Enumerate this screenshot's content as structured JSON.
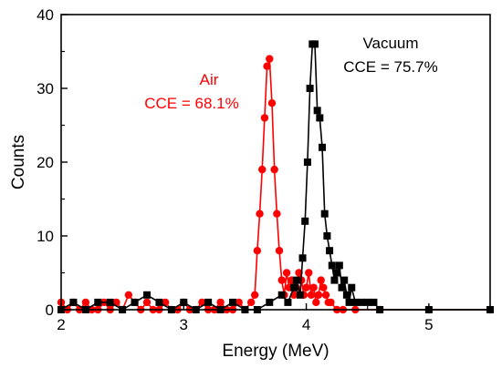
{
  "chart_data": {
    "type": "scatter",
    "title": "",
    "xlabel": "Energy (MeV)",
    "ylabel": "Counts",
    "xlim": [
      2,
      5.5
    ],
    "ylim": [
      0,
      40
    ],
    "xticks": [
      2,
      3,
      4,
      5
    ],
    "yticks": [
      0,
      10,
      20,
      30,
      40
    ],
    "grid": false,
    "colors": {
      "air": "#ff0000",
      "vacuum": "#000000"
    },
    "annotations": {
      "air": {
        "name": "Air",
        "cce": "CCE = 68.1%"
      },
      "vacuum": {
        "name": "Vacuum",
        "cce": "CCE = 75.7%"
      }
    },
    "series": [
      {
        "key": "air",
        "marker": "circle",
        "points": [
          [
            2.0,
            1
          ],
          [
            2.05,
            0
          ],
          [
            2.1,
            1
          ],
          [
            2.15,
            0
          ],
          [
            2.2,
            1
          ],
          [
            2.25,
            0
          ],
          [
            2.3,
            0
          ],
          [
            2.35,
            1
          ],
          [
            2.4,
            0
          ],
          [
            2.45,
            1
          ],
          [
            2.5,
            0
          ],
          [
            2.55,
            2
          ],
          [
            2.6,
            1
          ],
          [
            2.65,
            0
          ],
          [
            2.7,
            1
          ],
          [
            2.75,
            0
          ],
          [
            2.8,
            0
          ],
          [
            2.85,
            1
          ],
          [
            2.9,
            0
          ],
          [
            2.95,
            0
          ],
          [
            3.0,
            1
          ],
          [
            3.05,
            0
          ],
          [
            3.1,
            0
          ],
          [
            3.15,
            1
          ],
          [
            3.2,
            0
          ],
          [
            3.25,
            0
          ],
          [
            3.3,
            1
          ],
          [
            3.35,
            0
          ],
          [
            3.4,
            0
          ],
          [
            3.45,
            1
          ],
          [
            3.5,
            0
          ],
          [
            3.55,
            1
          ],
          [
            3.58,
            2
          ],
          [
            3.6,
            8
          ],
          [
            3.62,
            13
          ],
          [
            3.64,
            19
          ],
          [
            3.66,
            26
          ],
          [
            3.68,
            33
          ],
          [
            3.7,
            34
          ],
          [
            3.72,
            28
          ],
          [
            3.74,
            19
          ],
          [
            3.76,
            13
          ],
          [
            3.78,
            8
          ],
          [
            3.8,
            4
          ],
          [
            3.82,
            2
          ],
          [
            3.84,
            5
          ],
          [
            3.86,
            3
          ],
          [
            3.88,
            4
          ],
          [
            3.9,
            2
          ],
          [
            3.92,
            3
          ],
          [
            3.94,
            5
          ],
          [
            3.96,
            4
          ],
          [
            3.98,
            2
          ],
          [
            4.0,
            3
          ],
          [
            4.02,
            5
          ],
          [
            4.04,
            2
          ],
          [
            4.06,
            3
          ],
          [
            4.08,
            1
          ],
          [
            4.1,
            2
          ],
          [
            4.12,
            4
          ],
          [
            4.14,
            3
          ],
          [
            4.16,
            2
          ],
          [
            4.18,
            1
          ],
          [
            4.2,
            1
          ],
          [
            4.25,
            0
          ],
          [
            4.3,
            0
          ],
          [
            4.4,
            0
          ],
          [
            4.6,
            0
          ],
          [
            5.0,
            0
          ],
          [
            5.5,
            0
          ]
        ]
      },
      {
        "key": "vacuum",
        "marker": "square",
        "points": [
          [
            2.0,
            0
          ],
          [
            2.1,
            1
          ],
          [
            2.2,
            0
          ],
          [
            2.3,
            1
          ],
          [
            2.4,
            1
          ],
          [
            2.5,
            0
          ],
          [
            2.6,
            1
          ],
          [
            2.7,
            2
          ],
          [
            2.8,
            1
          ],
          [
            2.9,
            0
          ],
          [
            3.0,
            1
          ],
          [
            3.1,
            0
          ],
          [
            3.2,
            1
          ],
          [
            3.3,
            0
          ],
          [
            3.4,
            1
          ],
          [
            3.5,
            0
          ],
          [
            3.6,
            0
          ],
          [
            3.7,
            1
          ],
          [
            3.8,
            2
          ],
          [
            3.85,
            1
          ],
          [
            3.9,
            3
          ],
          [
            3.92,
            4
          ],
          [
            3.95,
            2
          ],
          [
            3.97,
            7
          ],
          [
            3.99,
            12
          ],
          [
            4.01,
            20
          ],
          [
            4.03,
            30
          ],
          [
            4.05,
            36
          ],
          [
            4.07,
            36
          ],
          [
            4.09,
            27
          ],
          [
            4.11,
            26
          ],
          [
            4.13,
            22
          ],
          [
            4.15,
            13
          ],
          [
            4.17,
            10
          ],
          [
            4.19,
            8
          ],
          [
            4.21,
            6
          ],
          [
            4.23,
            4
          ],
          [
            4.25,
            5
          ],
          [
            4.27,
            6
          ],
          [
            4.29,
            3
          ],
          [
            4.31,
            4
          ],
          [
            4.33,
            2
          ],
          [
            4.35,
            1
          ],
          [
            4.37,
            3
          ],
          [
            4.4,
            1
          ],
          [
            4.45,
            1
          ],
          [
            4.5,
            1
          ],
          [
            4.55,
            1
          ],
          [
            4.6,
            0
          ],
          [
            5.0,
            0
          ],
          [
            5.5,
            0
          ]
        ]
      }
    ]
  }
}
